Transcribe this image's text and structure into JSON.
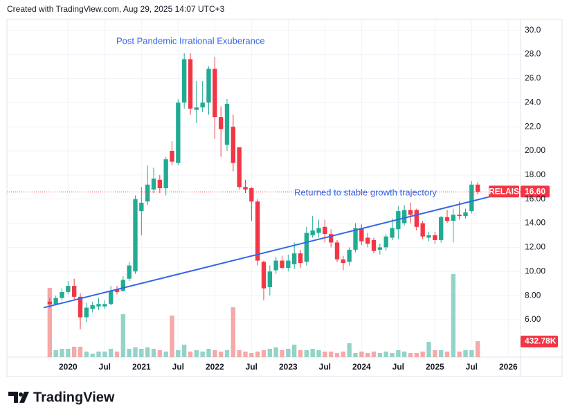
{
  "header": "Created with TradingView.com, Aug 29, 2025 14:07 UTC+3",
  "footer": "TradingView",
  "chart_data": {
    "type": "candlestick",
    "annotations": [
      "Post Pandemic Irrational Exuberance",
      "Returned to stable growth trajectory"
    ],
    "symbol": "RELAIS",
    "x": [
      "2019-10",
      "2019-11",
      "2019-12",
      "2020-01",
      "2020-02",
      "2020-03",
      "2020-04",
      "2020-05",
      "2020-06",
      "2020-07",
      "2020-08",
      "2020-09",
      "2020-10",
      "2020-11",
      "2020-12",
      "2021-01",
      "2021-02",
      "2021-03",
      "2021-04",
      "2021-05",
      "2021-06",
      "2021-07",
      "2021-08",
      "2021-09",
      "2021-10",
      "2021-11",
      "2021-12",
      "2022-01",
      "2022-02",
      "2022-03",
      "2022-04",
      "2022-05",
      "2022-06",
      "2022-07",
      "2022-08",
      "2022-09",
      "2022-10",
      "2022-11",
      "2022-12",
      "2023-01",
      "2023-02",
      "2023-03",
      "2023-04",
      "2023-05",
      "2023-06",
      "2023-07",
      "2023-08",
      "2023-09",
      "2023-10",
      "2023-11",
      "2023-12",
      "2024-01",
      "2024-02",
      "2024-03",
      "2024-04",
      "2024-05",
      "2024-06",
      "2024-07",
      "2024-08",
      "2024-09",
      "2024-10",
      "2024-11",
      "2024-12",
      "2025-01",
      "2025-02",
      "2025-03",
      "2025-04",
      "2025-05",
      "2025-06",
      "2025-07",
      "2025-08"
    ],
    "open": [
      7.5,
      7.3,
      7.8,
      8.3,
      8.8,
      7.9,
      6.2,
      6.9,
      7.1,
      7.1,
      7.3,
      8.5,
      8.4,
      9.4,
      10.0,
      15.0,
      15.8,
      16.8,
      17.6,
      16.9,
      20.0,
      19.0,
      24.0,
      27.6,
      23.4,
      23.6,
      24.0,
      26.8,
      22.8,
      20.5,
      22.0,
      20.3,
      17.0,
      16.9,
      15.8,
      10.8,
      8.7,
      10.1,
      10.9,
      10.3,
      10.6,
      11.5,
      10.8,
      13.0,
      13.2,
      13.7,
      13.1,
      12.4,
      11.0,
      10.8,
      11.8,
      13.6,
      12.8,
      12.6,
      11.8,
      12.0,
      12.8,
      13.5,
      14.0,
      15.1,
      15.1,
      14.0,
      12.8,
      13.0,
      12.6,
      14.5,
      14.2,
      14.7,
      14.6,
      15.0,
      17.2
    ],
    "high": [
      7.8,
      8.0,
      8.6,
      9.2,
      9.4,
      8.2,
      7.4,
      7.5,
      7.8,
      7.6,
      8.8,
      8.8,
      9.6,
      10.8,
      16.3,
      17.0,
      18.8,
      18.6,
      18.0,
      19.5,
      20.8,
      24.3,
      28.1,
      28.1,
      25.8,
      25.8,
      27.0,
      27.8,
      23.7,
      24.3,
      23.0,
      20.3,
      17.6,
      17.0,
      16.0,
      10.9,
      10.5,
      11.2,
      11.3,
      11.4,
      12.4,
      11.8,
      13.7,
      14.6,
      14.3,
      14.3,
      13.5,
      12.6,
      11.3,
      12.0,
      14.0,
      13.9,
      13.2,
      12.8,
      12.3,
      13.1,
      14.4,
      15.4,
      15.5,
      15.7,
      15.2,
      14.2,
      13.3,
      13.3,
      14.6,
      15.1,
      15.2,
      15.8,
      15.2,
      17.5,
      17.4
    ],
    "low": [
      7.0,
      7.2,
      7.6,
      8.1,
      7.7,
      5.2,
      5.8,
      6.6,
      6.8,
      6.9,
      7.2,
      8.1,
      8.3,
      9.2,
      9.8,
      13.0,
      15.5,
      16.5,
      16.5,
      16.3,
      18.8,
      18.8,
      23.5,
      23.0,
      22.3,
      23.2,
      23.0,
      21.0,
      19.5,
      20.0,
      18.3,
      16.8,
      16.5,
      14.2,
      10.5,
      7.6,
      8.0,
      9.8,
      10.2,
      10.0,
      10.2,
      10.3,
      10.5,
      12.8,
      12.8,
      12.4,
      12.0,
      10.8,
      10.1,
      10.5,
      11.6,
      12.2,
      12.0,
      11.5,
      11.4,
      11.7,
      12.6,
      12.7,
      13.8,
      14.0,
      13.4,
      12.7,
      12.5,
      12.3,
      12.4,
      14.0,
      12.4,
      14.3,
      14.4,
      14.8,
      16.4
    ],
    "close": [
      7.3,
      7.8,
      8.3,
      8.8,
      7.9,
      6.2,
      7.0,
      7.2,
      7.3,
      7.3,
      8.4,
      8.3,
      9.3,
      10.5,
      16.0,
      15.7,
      17.2,
      17.7,
      16.9,
      19.3,
      19.1,
      24.0,
      27.6,
      23.5,
      23.6,
      24.0,
      26.8,
      22.8,
      21.8,
      23.9,
      19.0,
      17.0,
      16.8,
      15.8,
      10.9,
      8.6,
      10.0,
      10.9,
      10.3,
      10.9,
      11.5,
      10.7,
      13.2,
      13.4,
      13.6,
      13.1,
      12.4,
      11.0,
      10.7,
      11.8,
      13.6,
      12.5,
      12.3,
      11.7,
      12.0,
      12.9,
      13.6,
      15.0,
      15.1,
      14.7,
      13.7,
      12.9,
      13.0,
      12.6,
      14.5,
      14.2,
      14.7,
      14.6,
      14.9,
      17.2,
      16.6
    ],
    "volume": [
      1880000,
      188000,
      225600,
      225600,
      282000,
      282000,
      150400,
      94000,
      150400,
      150400,
      225600,
      150400,
      1165600,
      225600,
      263200,
      225600,
      263200,
      225600,
      188000,
      150400,
      1128000,
      188000,
      338400,
      150400,
      188000,
      150400,
      225600,
      188000,
      150400,
      188000,
      1353600,
      188000,
      150400,
      112800,
      150400,
      188000,
      225600,
      263200,
      188000,
      225600,
      338400,
      188000,
      188000,
      225600,
      188000,
      150400,
      150400,
      112800,
      150400,
      376000,
      112800,
      150400,
      112800,
      150400,
      112800,
      150400,
      112800,
      188000,
      150400,
      112800,
      112800,
      150400,
      413600,
      188000,
      188000,
      150400,
      2256000,
      150400,
      188000,
      188000,
      432780
    ],
    "volume_last_label": "432.78K",
    "last_price_label": "16.60",
    "trendline": {
      "x": [
        "2019-09",
        "2025-10"
      ],
      "values": [
        7.0,
        16.2
      ],
      "color": "#3366e6"
    },
    "up_color": "#22ab94",
    "down_color": "#f23645",
    "volume_up_color": "#93d3c8",
    "volume_down_color": "#f7a8a8",
    "xlim": [
      "2019-03",
      "2026-03"
    ],
    "ylim": [
      2.9,
      30.9
    ],
    "yticks": [
      {
        "value": 30,
        "label": "30.0"
      },
      {
        "value": 28,
        "label": "28.0"
      },
      {
        "value": 26,
        "label": "26.0"
      },
      {
        "value": 24,
        "label": "24.0"
      },
      {
        "value": 22,
        "label": "22.0"
      },
      {
        "value": 20,
        "label": "20.00"
      },
      {
        "value": 18,
        "label": "18.00"
      },
      {
        "value": 16,
        "label": "16.00"
      },
      {
        "value": 14,
        "label": "14.00"
      },
      {
        "value": 12,
        "label": "12.00"
      },
      {
        "value": 10,
        "label": "10.00"
      },
      {
        "value": 8,
        "label": "8.00"
      },
      {
        "value": 6,
        "label": "6.00"
      }
    ],
    "xticks": [
      {
        "value": "2020-01",
        "label": "2020"
      },
      {
        "value": "2020-07",
        "label": "Jul"
      },
      {
        "value": "2021-01",
        "label": "2021"
      },
      {
        "value": "2021-07",
        "label": "Jul"
      },
      {
        "value": "2022-01",
        "label": "2022"
      },
      {
        "value": "2022-07",
        "label": "Jul"
      },
      {
        "value": "2023-01",
        "label": "2023"
      },
      {
        "value": "2023-07",
        "label": "Jul"
      },
      {
        "value": "2024-01",
        "label": "2024"
      },
      {
        "value": "2024-07",
        "label": "Jul"
      },
      {
        "value": "2025-01",
        "label": "2025"
      },
      {
        "value": "2025-07",
        "label": "Jul"
      },
      {
        "value": "2026-01",
        "label": "2026"
      }
    ],
    "grid": true
  }
}
